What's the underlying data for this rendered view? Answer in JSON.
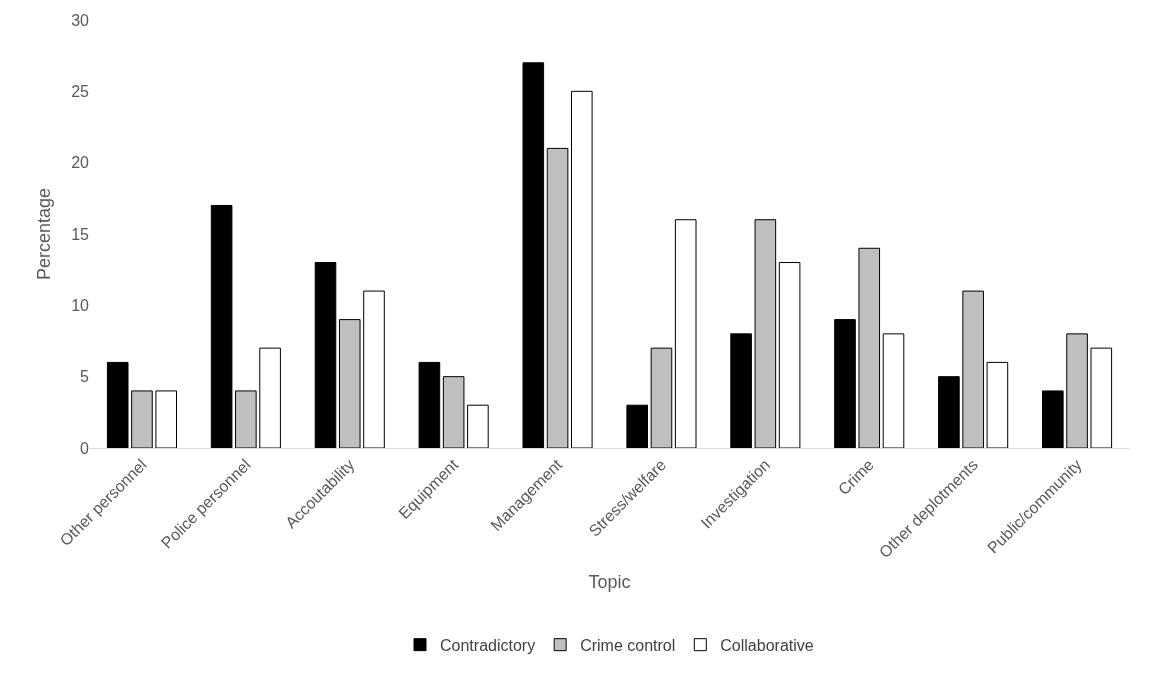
{
  "chart_data": {
    "type": "bar",
    "xlabel": "Topic",
    "ylabel": "Percentage",
    "categories": [
      "Other personnel",
      "Police personnel",
      "Accoutability",
      "Equipment",
      "Management",
      "Stress/welfare",
      "Investigation",
      "Crime",
      "Other deplotments",
      "Public/community"
    ],
    "series": [
      {
        "name": "Contradictory",
        "color": "#000000",
        "values": [
          6,
          17,
          13,
          6,
          27,
          3,
          8,
          9,
          5,
          4
        ]
      },
      {
        "name": "Crime control",
        "color": "#bfbfbf",
        "values": [
          4,
          4,
          9,
          5,
          21,
          7,
          16,
          14,
          11,
          8
        ]
      },
      {
        "name": "Collaborative",
        "color": "#ffffff",
        "values": [
          4,
          7,
          11,
          3,
          25,
          16,
          13,
          8,
          6,
          7
        ]
      }
    ],
    "ylim": [
      0,
      30
    ],
    "yticks": [
      0,
      5,
      10,
      15,
      20,
      25,
      30
    ],
    "legend": "bottom"
  }
}
